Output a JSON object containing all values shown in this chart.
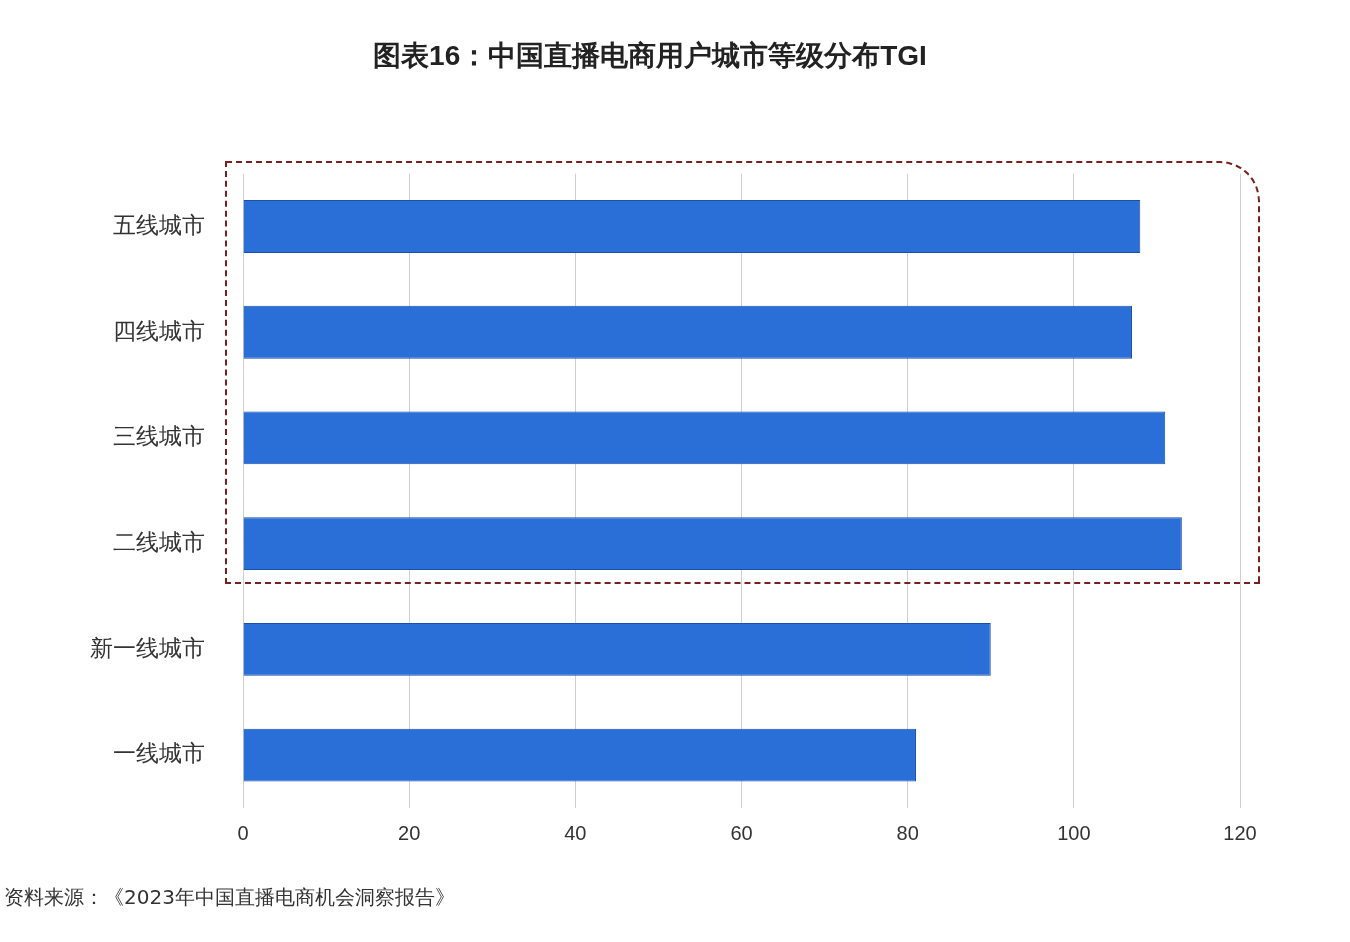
{
  "chart_data": {
    "type": "bar",
    "orientation": "horizontal",
    "title": "图表16：中国直播电商用户城市等级分布TGI",
    "categories": [
      "五线城市",
      "四线城市",
      "三线城市",
      "二线城市",
      "新一线城市",
      "一线城市"
    ],
    "values": [
      108,
      107,
      111,
      113,
      90,
      81
    ],
    "color": "#2a6fd8",
    "xlim": [
      0,
      120
    ],
    "xticks": [
      0,
      20,
      40,
      60,
      80,
      100,
      120
    ],
    "grid": "x",
    "annotations": [
      "资料来源：《2023年中国直播电商机会洞察报告》"
    ]
  }
}
